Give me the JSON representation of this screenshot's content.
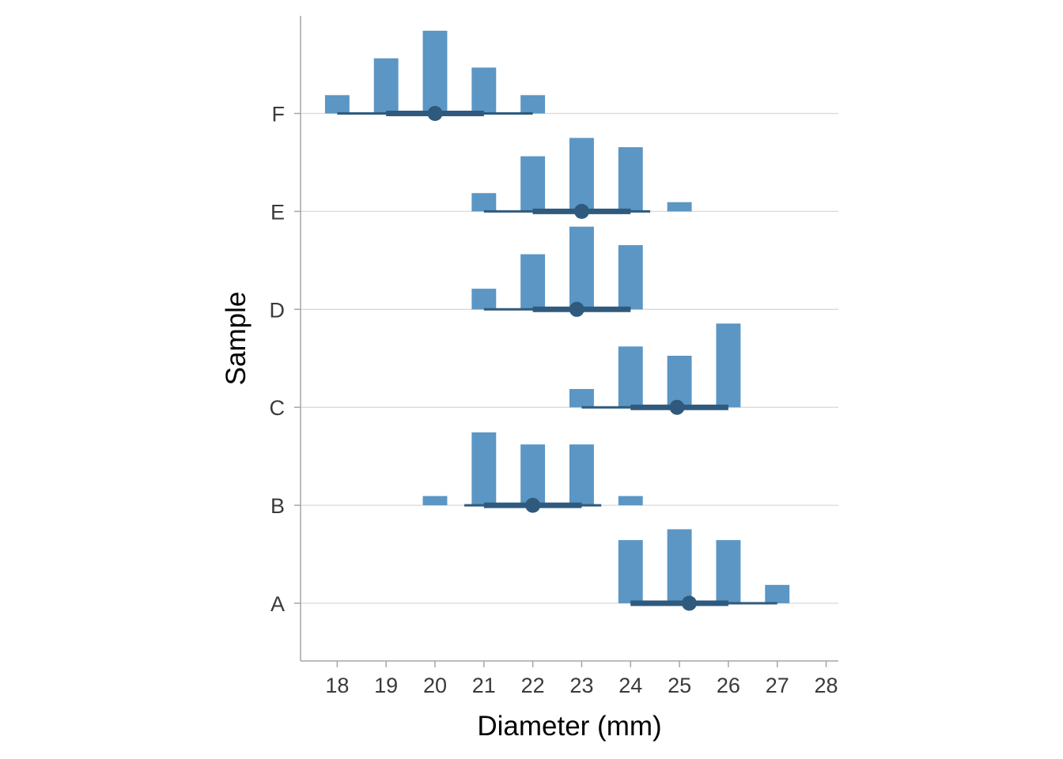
{
  "chart_data": {
    "type": "histogram-interval",
    "title": "",
    "xlabel": "Diameter (mm)",
    "ylabel": "Sample",
    "xlim": [
      17.25,
      28.25
    ],
    "x_ticks": [
      18,
      19,
      20,
      21,
      22,
      23,
      24,
      25,
      26,
      27,
      28
    ],
    "categories": [
      "A",
      "B",
      "C",
      "D",
      "E",
      "F"
    ],
    "grid": "horizontal",
    "legend": "none",
    "colors": {
      "bar": "#5b96c4",
      "interval": "#2f5a7d",
      "grid": "#d9d9d9",
      "axis": "#a6a6a6"
    },
    "bar_max_relative_height": 1.0,
    "samples": [
      {
        "name": "A",
        "bars": [
          {
            "x": 24,
            "height": 0.355
          },
          {
            "x": 25,
            "height": 0.416
          },
          {
            "x": 26,
            "height": 0.355
          },
          {
            "x": 27,
            "height": 0.103
          }
        ],
        "point": 25.2,
        "inner_interval": [
          24,
          26
        ],
        "outer_interval": [
          24,
          27
        ]
      },
      {
        "name": "B",
        "bars": [
          {
            "x": 20,
            "height": 0.052
          },
          {
            "x": 21,
            "height": 0.41
          },
          {
            "x": 22,
            "height": 0.342
          },
          {
            "x": 23,
            "height": 0.342
          },
          {
            "x": 24,
            "height": 0.052
          }
        ],
        "point": 22.0,
        "inner_interval": [
          21,
          23
        ],
        "outer_interval": [
          20.6,
          23.4
        ]
      },
      {
        "name": "C",
        "bars": [
          {
            "x": 23,
            "height": 0.103
          },
          {
            "x": 24,
            "height": 0.342
          },
          {
            "x": 25,
            "height": 0.29
          },
          {
            "x": 26,
            "height": 0.471
          }
        ],
        "point": 24.95,
        "inner_interval": [
          24,
          26
        ],
        "outer_interval": [
          23,
          26
        ]
      },
      {
        "name": "D",
        "bars": [
          {
            "x": 21,
            "height": 0.116
          },
          {
            "x": 22,
            "height": 0.31
          },
          {
            "x": 23,
            "height": 0.465
          },
          {
            "x": 24,
            "height": 0.361
          }
        ],
        "point": 22.9,
        "inner_interval": [
          22,
          24
        ],
        "outer_interval": [
          21,
          24
        ]
      },
      {
        "name": "E",
        "bars": [
          {
            "x": 21,
            "height": 0.103
          },
          {
            "x": 22,
            "height": 0.31
          },
          {
            "x": 23,
            "height": 0.413
          },
          {
            "x": 24,
            "height": 0.361
          },
          {
            "x": 25,
            "height": 0.052
          }
        ],
        "point": 23.0,
        "inner_interval": [
          22,
          24
        ],
        "outer_interval": [
          21,
          24.4
        ]
      },
      {
        "name": "F",
        "bars": [
          {
            "x": 18,
            "height": 0.103
          },
          {
            "x": 19,
            "height": 0.31
          },
          {
            "x": 20,
            "height": 0.465
          },
          {
            "x": 21,
            "height": 0.258
          },
          {
            "x": 22,
            "height": 0.103
          }
        ],
        "point": 20.0,
        "inner_interval": [
          19,
          21
        ],
        "outer_interval": [
          18,
          22
        ]
      }
    ]
  }
}
